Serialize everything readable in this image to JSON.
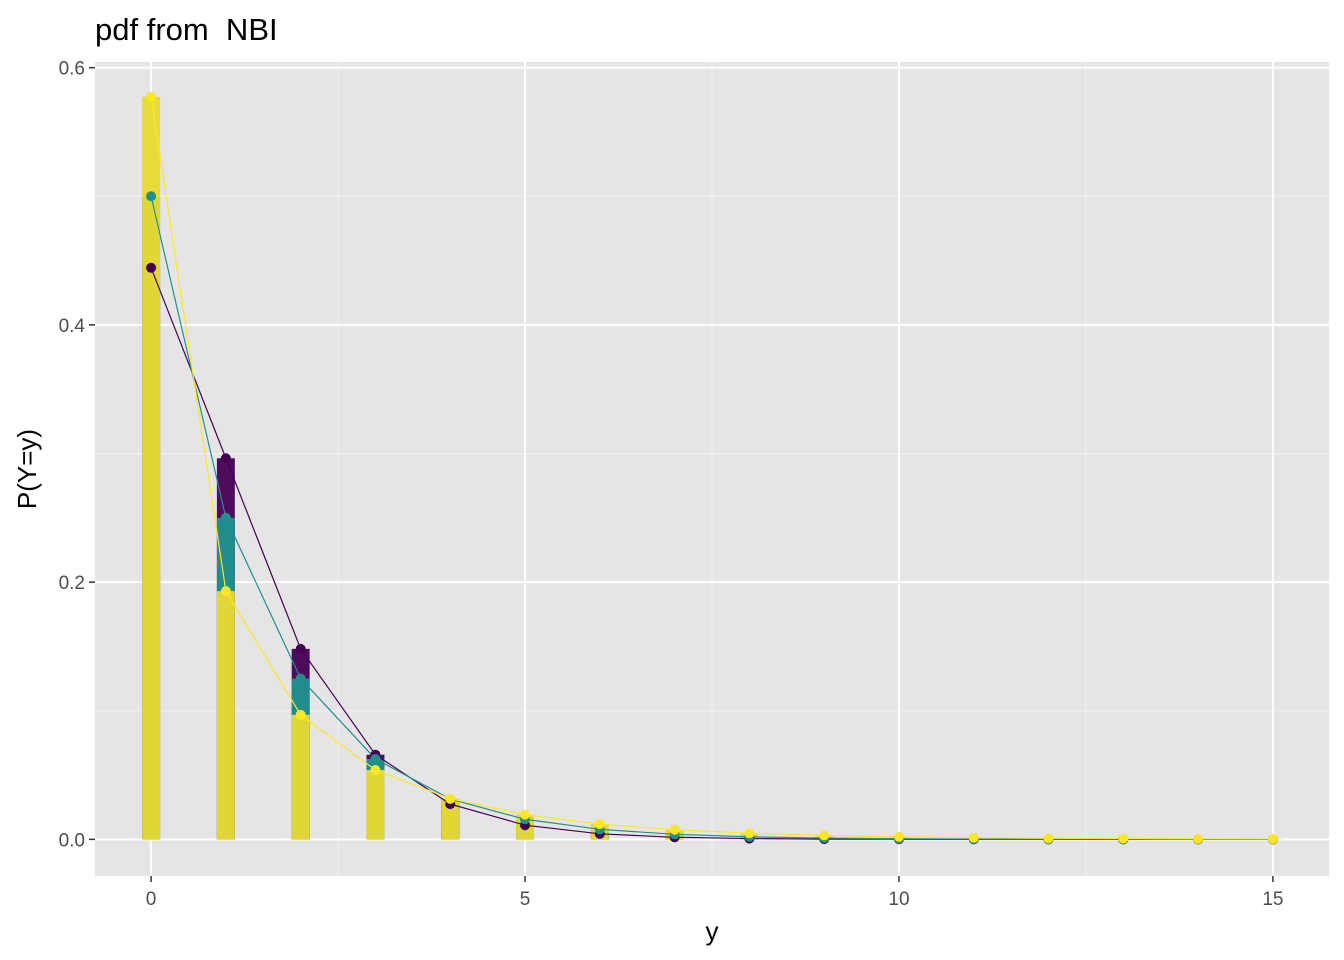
{
  "chart_data": {
    "type": "bar",
    "title": "pdf from  NBI",
    "xlabel": "y",
    "ylabel": "P(Y=y)",
    "xlim": [
      -0.75,
      15.75
    ],
    "ylim": [
      -0.0285,
      0.6044
    ],
    "x_ticks": [
      0,
      5,
      10,
      15
    ],
    "x_tick_labels": [
      "0",
      "5",
      "10",
      "15"
    ],
    "y_ticks": [
      0.0,
      0.2,
      0.4,
      0.6
    ],
    "y_tick_labels": [
      "0.0",
      "0.2",
      "0.4",
      "0.6"
    ],
    "grid": true,
    "legend": "none",
    "background": "#e5e5e5",
    "x": [
      0,
      1,
      2,
      3,
      4,
      5,
      6,
      7,
      8,
      9,
      10,
      11,
      12,
      13,
      14,
      15
    ],
    "series": [
      {
        "color": "#440154",
        "values": [
          0.4444,
          0.2963,
          0.1481,
          0.0658,
          0.0274,
          0.011,
          0.0043,
          0.0016,
          0.0006,
          0.0002,
          0.0001,
          0.0,
          0.0,
          0.0,
          0.0,
          0.0
        ]
      },
      {
        "color": "#21908c",
        "values": [
          0.5,
          0.25,
          0.125,
          0.0625,
          0.0313,
          0.0156,
          0.0078,
          0.0039,
          0.002,
          0.001,
          0.0005,
          0.0002,
          0.0001,
          0.0001,
          0.0,
          0.0
        ]
      },
      {
        "color": "#fde725",
        "values": [
          0.5774,
          0.193,
          0.0968,
          0.0539,
          0.0316,
          0.0192,
          0.0119,
          0.0075,
          0.0048,
          0.0031,
          0.002,
          0.0013,
          0.0008,
          0.0006,
          0.0004,
          0.0003
        ]
      }
    ]
  }
}
